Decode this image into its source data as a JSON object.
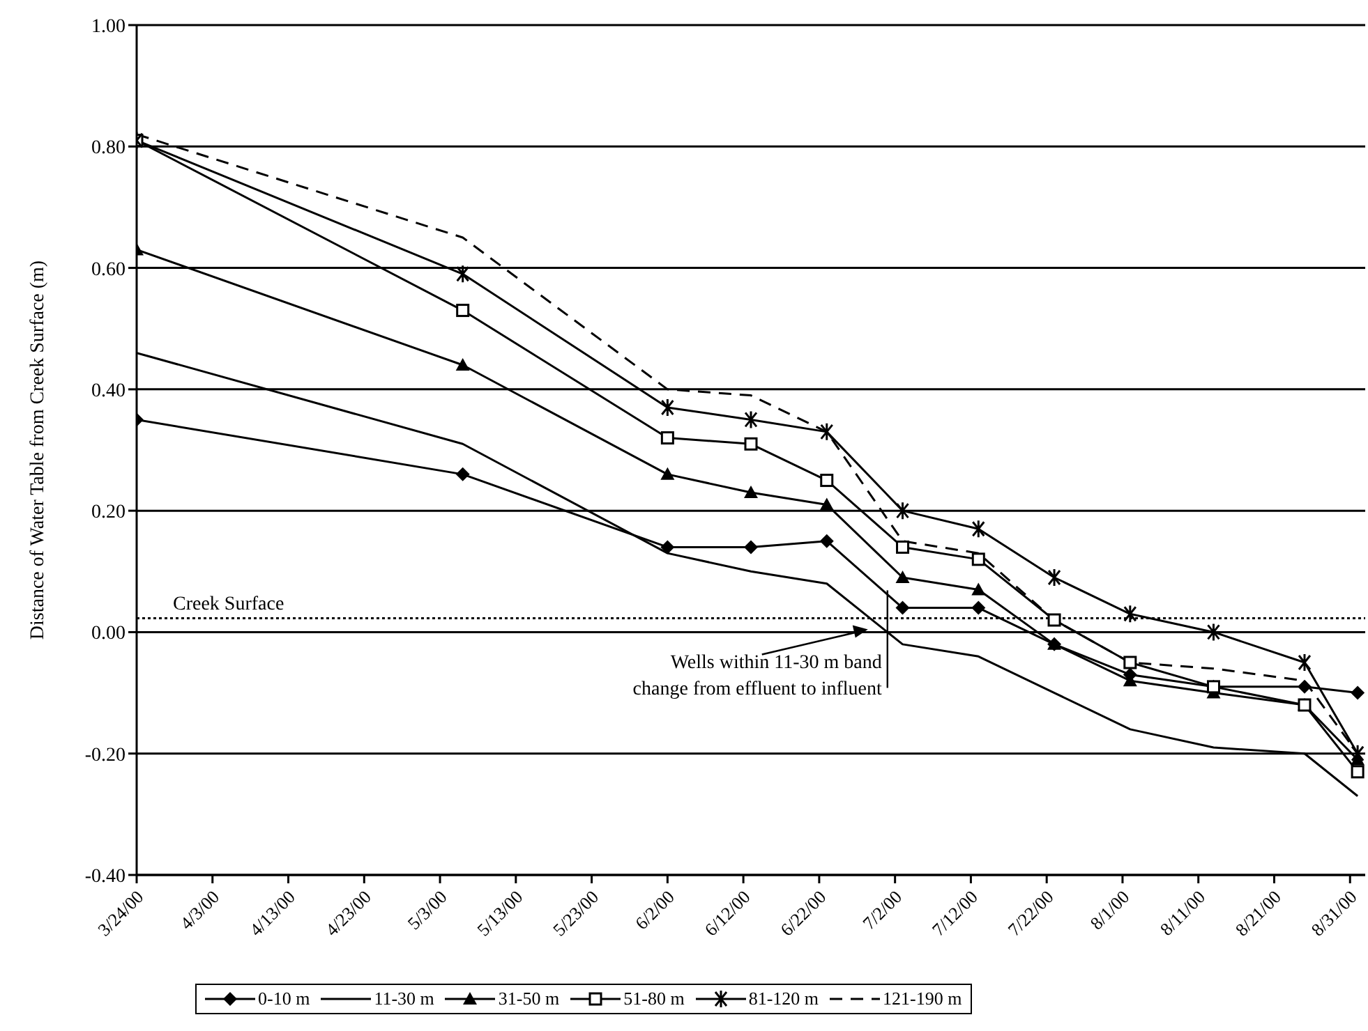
{
  "chart_data": {
    "type": "line",
    "ylabel": "Distance of Water Table from Creek Surface (m)",
    "x": [
      "2000-03-24",
      "2000-05-06",
      "2000-06-02",
      "2000-06-13",
      "2000-06-23",
      "2000-07-03",
      "2000-07-13",
      "2000-07-23",
      "2000-08-02",
      "2000-08-13",
      "2000-08-25",
      "2000-09-01"
    ],
    "series": [
      {
        "name": "0-10 m",
        "color": "#000000",
        "marker": "diamond",
        "values": [
          0.35,
          0.26,
          0.14,
          0.14,
          0.15,
          0.04,
          0.04,
          -0.02,
          -0.07,
          -0.09,
          -0.09,
          -0.1
        ]
      },
      {
        "name": "11-30 m",
        "color": "#000000",
        "marker": "none",
        "values": [
          0.46,
          0.31,
          0.13,
          0.1,
          0.08,
          -0.02,
          -0.04,
          -0.1,
          -0.16,
          -0.19,
          -0.2,
          -0.27
        ]
      },
      {
        "name": "31-50 m",
        "color": "#000000",
        "marker": "triangle",
        "values": [
          0.63,
          0.44,
          0.26,
          0.23,
          0.21,
          0.09,
          0.07,
          -0.02,
          -0.08,
          -0.1,
          -0.12,
          -0.21
        ]
      },
      {
        "name": "51-80 m",
        "color": "#000000",
        "marker": "square",
        "values": [
          0.81,
          0.53,
          0.32,
          0.31,
          0.25,
          0.14,
          0.12,
          0.02,
          -0.05,
          -0.09,
          -0.12,
          -0.23
        ]
      },
      {
        "name": "81-120 m",
        "color": "#000000",
        "marker": "cross",
        "values": [
          0.81,
          0.59,
          0.37,
          0.35,
          0.33,
          0.2,
          0.17,
          0.09,
          0.03,
          0.0,
          -0.05,
          -0.2
        ]
      },
      {
        "name": "121-190 m",
        "color": "#000000",
        "marker": "none",
        "line_style": "dashed",
        "values": [
          0.82,
          0.65,
          0.4,
          0.39,
          0.33,
          0.15,
          0.13,
          0.02,
          -0.05,
          -0.06,
          -0.08,
          -0.2
        ]
      }
    ],
    "xlim": [
      "2000-03-24",
      "2000-09-02"
    ],
    "xticks": [
      {
        "value": "2000-03-24",
        "label": "3/24/00"
      },
      {
        "value": "2000-04-03",
        "label": "4/3/00"
      },
      {
        "value": "2000-04-13",
        "label": "4/13/00"
      },
      {
        "value": "2000-04-23",
        "label": "4/23/00"
      },
      {
        "value": "2000-05-03",
        "label": "5/3/00"
      },
      {
        "value": "2000-05-13",
        "label": "5/13/00"
      },
      {
        "value": "2000-05-23",
        "label": "5/23/00"
      },
      {
        "value": "2000-06-02",
        "label": "6/2/00"
      },
      {
        "value": "2000-06-12",
        "label": "6/12/00"
      },
      {
        "value": "2000-06-22",
        "label": "6/22/00"
      },
      {
        "value": "2000-07-02",
        "label": "7/2/00"
      },
      {
        "value": "2000-07-12",
        "label": "7/12/00"
      },
      {
        "value": "2000-07-22",
        "label": "7/22/00"
      },
      {
        "value": "2000-08-01",
        "label": "8/1/00"
      },
      {
        "value": "2000-08-11",
        "label": "8/11/00"
      },
      {
        "value": "2000-08-21",
        "label": "8/21/00"
      },
      {
        "value": "2000-08-31",
        "label": "8/31/00"
      }
    ],
    "ylim": [
      -0.4,
      1.0
    ],
    "yticks": [
      {
        "value": -0.4,
        "label": "-0.40"
      },
      {
        "value": -0.2,
        "label": "-0.20"
      },
      {
        "value": 0,
        "label": "0.00"
      },
      {
        "value": 0.2,
        "label": "0.20"
      },
      {
        "value": 0.4,
        "label": "0.40"
      },
      {
        "value": 0.6,
        "label": "0.60"
      },
      {
        "value": 0.8,
        "label": "0.80"
      },
      {
        "value": 1.0,
        "label": "1.00"
      }
    ],
    "grid": "y",
    "legend": "bottom",
    "ref_lines": [
      {
        "axis": "y",
        "value": 0.023,
        "label": "Creek Surface",
        "color": "#000000",
        "line_style": "dotted"
      }
    ],
    "annotations": [
      {
        "text": "Wells within 11-30 m band\nchange from effluent to influent",
        "x": "2000-07-01",
        "y": 0.0
      }
    ]
  }
}
